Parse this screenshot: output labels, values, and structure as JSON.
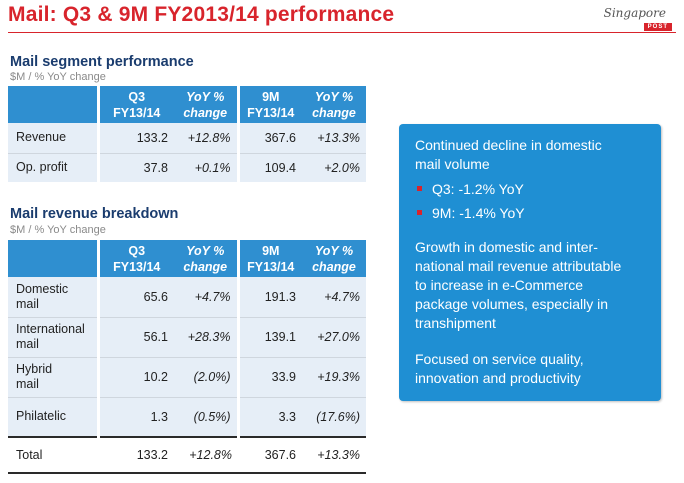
{
  "header": {
    "title": "Mail: Q3 & 9M FY2013/14 performance",
    "logo_script": "Singapore",
    "logo_box": "POST"
  },
  "segment": {
    "title": "Mail segment performance",
    "subtitle": "$M / % YoY change",
    "headers": {
      "q3_l1": "Q3",
      "q3_l2": "FY13/14",
      "yoy_l1": "YoY %",
      "yoy_l2": "change",
      "m9_l1": "9M",
      "m9_l2": "FY13/14"
    },
    "rows": [
      {
        "label": "Revenue",
        "q3": "133.2",
        "q3_yoy": "+12.8%",
        "m9": "367.6",
        "m9_yoy": "+13.3%"
      },
      {
        "label": "Op. profit",
        "q3": "37.8",
        "q3_yoy": "+0.1%",
        "m9": "109.4",
        "m9_yoy": "+2.0%"
      }
    ]
  },
  "breakdown": {
    "title": "Mail revenue breakdown",
    "subtitle": "$M / % YoY change",
    "rows": [
      {
        "label1": "Domestic",
        "label2": "mail",
        "q3": "65.6",
        "q3_yoy": "+4.7%",
        "m9": "191.3",
        "m9_yoy": "+4.7%"
      },
      {
        "label1": "International",
        "label2": "mail",
        "q3": "56.1",
        "q3_yoy": "+28.3%",
        "m9": "139.1",
        "m9_yoy": "+27.0%"
      },
      {
        "label1": "Hybrid",
        "label2": "mail",
        "q3": "10.2",
        "q3_yoy": "(2.0%)",
        "m9": "33.9",
        "m9_yoy": "+19.3%"
      },
      {
        "label1": "Philatelic",
        "label2": "",
        "q3": "1.3",
        "q3_yoy": "(0.5%)",
        "m9": "3.3",
        "m9_yoy": "(17.6%)"
      }
    ],
    "total": {
      "label": "Total",
      "q3": "133.2",
      "q3_yoy": "+12.8%",
      "m9": "367.6",
      "m9_yoy": "+13.3%"
    }
  },
  "panel": {
    "p1_l1": "Continued decline in domestic",
    "p1_l2": "mail volume",
    "b1": "Q3: -1.2% YoY",
    "b2": "9M: -1.4% YoY",
    "p2_l1": "Growth in domestic and inter-",
    "p2_l2": "national mail revenue attributable",
    "p2_l3": "to increase in e-Commerce",
    "p2_l4": "package volumes, especially in",
    "p2_l5": "transhipment",
    "p3_l1": "Focused on service quality,",
    "p3_l2": "innovation and productivity"
  },
  "colors": {
    "accent_red": "#d8242c",
    "header_blue": "#2f8fd0",
    "panel_blue": "#1f8fd3",
    "title_navy": "#1a3c6e"
  }
}
